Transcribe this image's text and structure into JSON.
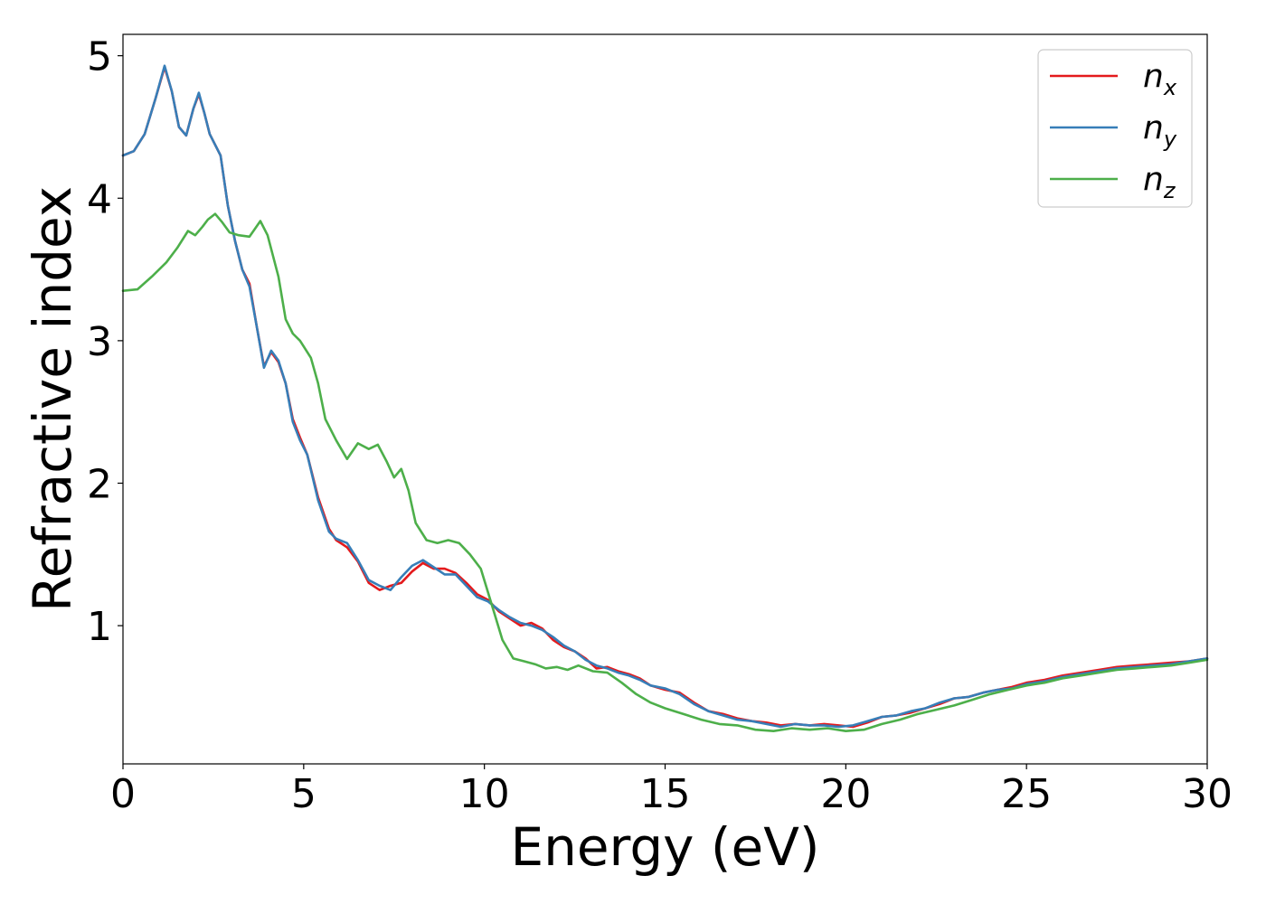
{
  "chart_data": {
    "type": "line",
    "title": "",
    "xlabel": "Energy (eV)",
    "ylabel": "Refractive index",
    "xlim": [
      0,
      30
    ],
    "ylim": [
      0.03,
      5.15
    ],
    "x_ticks": [
      0,
      5,
      10,
      15,
      20,
      25,
      30
    ],
    "y_ticks": [
      1,
      2,
      3,
      4,
      5
    ],
    "grid": false,
    "legend_position": "top-right",
    "series": [
      {
        "name": "n",
        "subscript": "x",
        "color": "#e41a1c",
        "points": [
          [
            0,
            4.3
          ],
          [
            0.3,
            4.33
          ],
          [
            0.6,
            4.45
          ],
          [
            0.9,
            4.7
          ],
          [
            1.15,
            4.92
          ],
          [
            1.35,
            4.75
          ],
          [
            1.55,
            4.5
          ],
          [
            1.75,
            4.44
          ],
          [
            1.95,
            4.63
          ],
          [
            2.1,
            4.73
          ],
          [
            2.25,
            4.6
          ],
          [
            2.4,
            4.45
          ],
          [
            2.7,
            4.3
          ],
          [
            2.9,
            3.95
          ],
          [
            3.1,
            3.7
          ],
          [
            3.3,
            3.5
          ],
          [
            3.5,
            3.4
          ],
          [
            3.7,
            3.1
          ],
          [
            3.9,
            2.82
          ],
          [
            4.1,
            2.92
          ],
          [
            4.3,
            2.85
          ],
          [
            4.5,
            2.7
          ],
          [
            4.7,
            2.45
          ],
          [
            4.9,
            2.32
          ],
          [
            5.1,
            2.2
          ],
          [
            5.4,
            1.9
          ],
          [
            5.7,
            1.68
          ],
          [
            5.9,
            1.6
          ],
          [
            6.2,
            1.55
          ],
          [
            6.5,
            1.45
          ],
          [
            6.8,
            1.3
          ],
          [
            7.1,
            1.25
          ],
          [
            7.4,
            1.28
          ],
          [
            7.7,
            1.3
          ],
          [
            8.0,
            1.38
          ],
          [
            8.3,
            1.44
          ],
          [
            8.6,
            1.4
          ],
          [
            8.9,
            1.4
          ],
          [
            9.2,
            1.37
          ],
          [
            9.5,
            1.3
          ],
          [
            9.8,
            1.22
          ],
          [
            10.1,
            1.18
          ],
          [
            10.4,
            1.1
          ],
          [
            10.7,
            1.05
          ],
          [
            11.0,
            1.0
          ],
          [
            11.3,
            1.02
          ],
          [
            11.6,
            0.98
          ],
          [
            11.9,
            0.9
          ],
          [
            12.2,
            0.85
          ],
          [
            12.5,
            0.82
          ],
          [
            12.8,
            0.77
          ],
          [
            13.1,
            0.7
          ],
          [
            13.4,
            0.71
          ],
          [
            13.7,
            0.68
          ],
          [
            14.0,
            0.66
          ],
          [
            14.3,
            0.63
          ],
          [
            14.6,
            0.58
          ],
          [
            15.0,
            0.55
          ],
          [
            15.4,
            0.53
          ],
          [
            15.8,
            0.46
          ],
          [
            16.2,
            0.4
          ],
          [
            16.6,
            0.38
          ],
          [
            17.0,
            0.35
          ],
          [
            17.4,
            0.33
          ],
          [
            17.8,
            0.32
          ],
          [
            18.2,
            0.3
          ],
          [
            18.6,
            0.31
          ],
          [
            19.0,
            0.3
          ],
          [
            19.4,
            0.31
          ],
          [
            19.8,
            0.3
          ],
          [
            20.2,
            0.29
          ],
          [
            20.6,
            0.32
          ],
          [
            21.0,
            0.36
          ],
          [
            21.4,
            0.37
          ],
          [
            21.8,
            0.39
          ],
          [
            22.2,
            0.42
          ],
          [
            22.6,
            0.45
          ],
          [
            23.0,
            0.49
          ],
          [
            23.4,
            0.5
          ],
          [
            23.8,
            0.53
          ],
          [
            24.2,
            0.55
          ],
          [
            24.6,
            0.57
          ],
          [
            25.0,
            0.6
          ],
          [
            25.5,
            0.62
          ],
          [
            26.0,
            0.65
          ],
          [
            26.5,
            0.67
          ],
          [
            27.0,
            0.69
          ],
          [
            27.5,
            0.71
          ],
          [
            28.0,
            0.72
          ],
          [
            28.5,
            0.73
          ],
          [
            29.0,
            0.74
          ],
          [
            29.5,
            0.75
          ],
          [
            30.0,
            0.77
          ]
        ]
      },
      {
        "name": "n",
        "subscript": "y",
        "color": "#377eb8",
        "points": [
          [
            0,
            4.3
          ],
          [
            0.3,
            4.33
          ],
          [
            0.6,
            4.45
          ],
          [
            0.9,
            4.7
          ],
          [
            1.15,
            4.93
          ],
          [
            1.35,
            4.75
          ],
          [
            1.55,
            4.5
          ],
          [
            1.75,
            4.44
          ],
          [
            1.95,
            4.63
          ],
          [
            2.1,
            4.74
          ],
          [
            2.25,
            4.6
          ],
          [
            2.4,
            4.45
          ],
          [
            2.7,
            4.3
          ],
          [
            2.9,
            3.95
          ],
          [
            3.1,
            3.7
          ],
          [
            3.3,
            3.5
          ],
          [
            3.5,
            3.38
          ],
          [
            3.7,
            3.1
          ],
          [
            3.9,
            2.81
          ],
          [
            4.1,
            2.93
          ],
          [
            4.3,
            2.86
          ],
          [
            4.5,
            2.7
          ],
          [
            4.7,
            2.43
          ],
          [
            4.9,
            2.3
          ],
          [
            5.1,
            2.2
          ],
          [
            5.4,
            1.88
          ],
          [
            5.7,
            1.66
          ],
          [
            5.9,
            1.61
          ],
          [
            6.2,
            1.58
          ],
          [
            6.5,
            1.46
          ],
          [
            6.8,
            1.32
          ],
          [
            7.1,
            1.28
          ],
          [
            7.4,
            1.25
          ],
          [
            7.7,
            1.34
          ],
          [
            8.0,
            1.42
          ],
          [
            8.3,
            1.46
          ],
          [
            8.6,
            1.41
          ],
          [
            8.9,
            1.36
          ],
          [
            9.2,
            1.36
          ],
          [
            9.5,
            1.28
          ],
          [
            9.8,
            1.2
          ],
          [
            10.1,
            1.17
          ],
          [
            10.4,
            1.11
          ],
          [
            10.7,
            1.06
          ],
          [
            11.0,
            1.02
          ],
          [
            11.3,
            1.0
          ],
          [
            11.6,
            0.97
          ],
          [
            11.9,
            0.92
          ],
          [
            12.2,
            0.86
          ],
          [
            12.5,
            0.82
          ],
          [
            12.8,
            0.76
          ],
          [
            13.1,
            0.72
          ],
          [
            13.4,
            0.7
          ],
          [
            13.7,
            0.67
          ],
          [
            14.0,
            0.65
          ],
          [
            14.3,
            0.62
          ],
          [
            14.6,
            0.58
          ],
          [
            15.0,
            0.56
          ],
          [
            15.4,
            0.52
          ],
          [
            15.8,
            0.45
          ],
          [
            16.2,
            0.4
          ],
          [
            16.6,
            0.37
          ],
          [
            17.0,
            0.34
          ],
          [
            17.4,
            0.33
          ],
          [
            17.8,
            0.31
          ],
          [
            18.2,
            0.29
          ],
          [
            18.6,
            0.31
          ],
          [
            19.0,
            0.3
          ],
          [
            19.4,
            0.3
          ],
          [
            19.8,
            0.29
          ],
          [
            20.2,
            0.3
          ],
          [
            20.6,
            0.33
          ],
          [
            21.0,
            0.36
          ],
          [
            21.4,
            0.37
          ],
          [
            21.8,
            0.4
          ],
          [
            22.2,
            0.42
          ],
          [
            22.6,
            0.46
          ],
          [
            23.0,
            0.49
          ],
          [
            23.4,
            0.5
          ],
          [
            23.8,
            0.53
          ],
          [
            24.2,
            0.55
          ],
          [
            24.6,
            0.56
          ],
          [
            25.0,
            0.59
          ],
          [
            25.5,
            0.61
          ],
          [
            26.0,
            0.64
          ],
          [
            26.5,
            0.66
          ],
          [
            27.0,
            0.68
          ],
          [
            27.5,
            0.7
          ],
          [
            28.0,
            0.71
          ],
          [
            28.5,
            0.72
          ],
          [
            29.0,
            0.73
          ],
          [
            29.5,
            0.75
          ],
          [
            30.0,
            0.77
          ]
        ]
      },
      {
        "name": "n",
        "subscript": "z",
        "color": "#4daf4a",
        "points": [
          [
            0,
            3.35
          ],
          [
            0.4,
            3.36
          ],
          [
            0.8,
            3.45
          ],
          [
            1.2,
            3.55
          ],
          [
            1.5,
            3.65
          ],
          [
            1.8,
            3.77
          ],
          [
            2.0,
            3.74
          ],
          [
            2.2,
            3.8
          ],
          [
            2.35,
            3.85
          ],
          [
            2.55,
            3.89
          ],
          [
            2.75,
            3.83
          ],
          [
            2.95,
            3.76
          ],
          [
            3.2,
            3.74
          ],
          [
            3.5,
            3.73
          ],
          [
            3.8,
            3.84
          ],
          [
            4.0,
            3.74
          ],
          [
            4.3,
            3.45
          ],
          [
            4.5,
            3.15
          ],
          [
            4.7,
            3.05
          ],
          [
            4.9,
            3.0
          ],
          [
            5.2,
            2.88
          ],
          [
            5.4,
            2.7
          ],
          [
            5.6,
            2.45
          ],
          [
            5.9,
            2.3
          ],
          [
            6.2,
            2.17
          ],
          [
            6.5,
            2.28
          ],
          [
            6.8,
            2.24
          ],
          [
            7.05,
            2.27
          ],
          [
            7.3,
            2.15
          ],
          [
            7.5,
            2.04
          ],
          [
            7.7,
            2.1
          ],
          [
            7.9,
            1.95
          ],
          [
            8.1,
            1.72
          ],
          [
            8.4,
            1.6
          ],
          [
            8.7,
            1.58
          ],
          [
            9.0,
            1.6
          ],
          [
            9.3,
            1.58
          ],
          [
            9.6,
            1.5
          ],
          [
            9.9,
            1.4
          ],
          [
            10.2,
            1.15
          ],
          [
            10.5,
            0.9
          ],
          [
            10.8,
            0.77
          ],
          [
            11.1,
            0.75
          ],
          [
            11.4,
            0.73
          ],
          [
            11.7,
            0.7
          ],
          [
            12.0,
            0.71
          ],
          [
            12.3,
            0.69
          ],
          [
            12.6,
            0.72
          ],
          [
            13.0,
            0.68
          ],
          [
            13.4,
            0.67
          ],
          [
            13.8,
            0.6
          ],
          [
            14.2,
            0.52
          ],
          [
            14.6,
            0.46
          ],
          [
            15.0,
            0.42
          ],
          [
            15.5,
            0.38
          ],
          [
            16.0,
            0.34
          ],
          [
            16.5,
            0.31
          ],
          [
            17.0,
            0.3
          ],
          [
            17.5,
            0.27
          ],
          [
            18.0,
            0.26
          ],
          [
            18.5,
            0.28
          ],
          [
            19.0,
            0.27
          ],
          [
            19.5,
            0.28
          ],
          [
            20.0,
            0.26
          ],
          [
            20.5,
            0.27
          ],
          [
            21.0,
            0.31
          ],
          [
            21.5,
            0.34
          ],
          [
            22.0,
            0.38
          ],
          [
            22.5,
            0.41
          ],
          [
            23.0,
            0.44
          ],
          [
            23.5,
            0.48
          ],
          [
            24.0,
            0.52
          ],
          [
            24.5,
            0.55
          ],
          [
            25.0,
            0.58
          ],
          [
            25.5,
            0.6
          ],
          [
            26.0,
            0.63
          ],
          [
            26.5,
            0.65
          ],
          [
            27.0,
            0.67
          ],
          [
            27.5,
            0.69
          ],
          [
            28.0,
            0.7
          ],
          [
            28.5,
            0.71
          ],
          [
            29.0,
            0.72
          ],
          [
            29.5,
            0.74
          ],
          [
            30.0,
            0.76
          ]
        ]
      }
    ]
  }
}
